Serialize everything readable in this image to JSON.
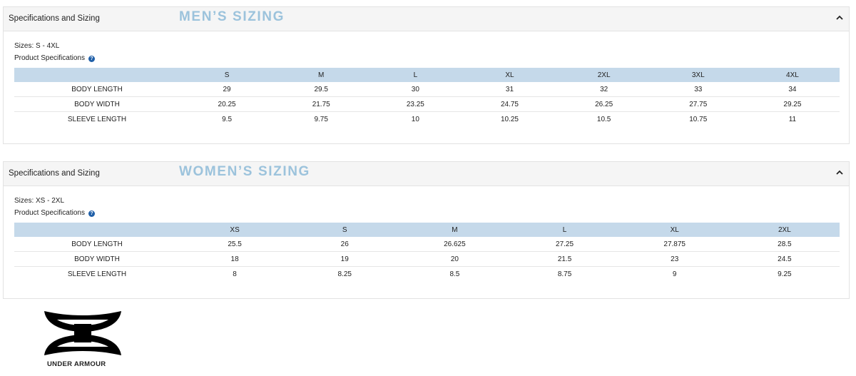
{
  "panels": [
    {
      "header": "Specifications and Sizing",
      "title": "MEN’S SIZING",
      "sizes": "Sizes: S - 4XL",
      "spec_label": "Product Specifications",
      "table": {
        "columns": [
          "S",
          "M",
          "L",
          "XL",
          "2XL",
          "3XL",
          "4XL"
        ],
        "rows": [
          {
            "label": "BODY LENGTH",
            "values": [
              29,
              29.5,
              30,
              31,
              32,
              33,
              34
            ]
          },
          {
            "label": "BODY WIDTH",
            "values": [
              20.25,
              21.75,
              23.25,
              24.75,
              26.25,
              27.75,
              29.25
            ]
          },
          {
            "label": "SLEEVE LENGTH",
            "values": [
              9.5,
              9.75,
              10,
              10.25,
              10.5,
              10.75,
              11
            ]
          }
        ]
      }
    },
    {
      "header": "Specifications and Sizing",
      "title": "WOMEN’S SIZING",
      "sizes": "Sizes: XS - 2XL",
      "spec_label": "Product Specifications",
      "table": {
        "columns": [
          "XS",
          "S",
          "M",
          "L",
          "XL",
          "2XL"
        ],
        "rows": [
          {
            "label": "BODY LENGTH",
            "values": [
              25.5,
              26,
              26.625,
              27.25,
              27.875,
              28.5
            ]
          },
          {
            "label": "BODY WIDTH",
            "values": [
              18,
              19,
              20,
              21.5,
              23,
              24.5
            ]
          },
          {
            "label": "SLEEVE LENGTH",
            "values": [
              8,
              8.25,
              8.5,
              8.75,
              9,
              9.25
            ]
          }
        ]
      }
    }
  ],
  "logo": {
    "text": "UNDER ARMOUR"
  }
}
